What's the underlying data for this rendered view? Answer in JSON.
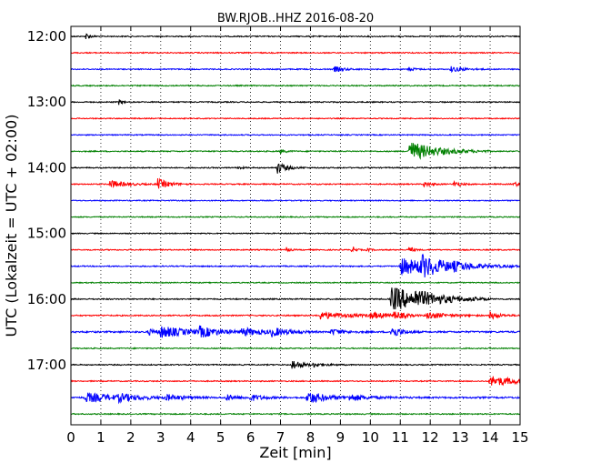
{
  "chart_data": {
    "type": "line",
    "title": "BW.RJOB..HHZ 2016-08-20",
    "xlabel": "Zeit  [min]",
    "ylabel": "UTC (Lokalzeit = UTC + 02:00)",
    "xlim": [
      0,
      15
    ],
    "x_ticks": [
      "0",
      "1",
      "2",
      "3",
      "4",
      "5",
      "6",
      "7",
      "8",
      "9",
      "10",
      "11",
      "12",
      "13",
      "14",
      "15"
    ],
    "y_ticks": [
      "12:00",
      "13:00",
      "14:00",
      "15:00",
      "16:00",
      "17:00"
    ],
    "grid": "vertical-dotted",
    "trace_interval_min": 15,
    "trace_colors": [
      "#000000",
      "#ff0000",
      "#0000ff",
      "#008000"
    ],
    "traces": [
      {
        "start": "12:00",
        "color": "#000000",
        "noise": 1.0,
        "events": [
          [
            0.5,
            4,
            0.12
          ]
        ]
      },
      {
        "start": "12:15",
        "color": "#ff0000",
        "noise": 1.0,
        "events": []
      },
      {
        "start": "12:30",
        "color": "#0000ff",
        "noise": 1.0,
        "events": [
          [
            8.8,
            3,
            0.3
          ],
          [
            12.7,
            3,
            0.4
          ],
          [
            11.3,
            2,
            0.2
          ]
        ]
      },
      {
        "start": "12:45",
        "color": "#008000",
        "noise": 1.0,
        "events": []
      },
      {
        "start": "13:00",
        "color": "#000000",
        "noise": 1.0,
        "events": [
          [
            1.6,
            3,
            0.1
          ]
        ]
      },
      {
        "start": "13:15",
        "color": "#ff0000",
        "noise": 0.9,
        "events": []
      },
      {
        "start": "13:30",
        "color": "#0000ff",
        "noise": 0.9,
        "events": []
      },
      {
        "start": "13:45",
        "color": "#008000",
        "noise": 1.0,
        "events": [
          [
            11.3,
            11,
            0.9
          ],
          [
            7.0,
            2,
            0.2
          ]
        ]
      },
      {
        "start": "14:00",
        "color": "#000000",
        "noise": 1.0,
        "events": [
          [
            6.9,
            6,
            0.3
          ],
          [
            5.6,
            2,
            0.1
          ]
        ]
      },
      {
        "start": "14:15",
        "color": "#ff0000",
        "noise": 1.0,
        "events": [
          [
            1.3,
            4,
            0.5
          ],
          [
            2.9,
            6,
            0.35
          ],
          [
            11.8,
            3,
            0.2
          ],
          [
            12.8,
            3,
            0.2
          ],
          [
            14.8,
            2,
            0.3
          ]
        ]
      },
      {
        "start": "14:30",
        "color": "#0000ff",
        "noise": 0.9,
        "events": []
      },
      {
        "start": "14:45",
        "color": "#008000",
        "noise": 0.9,
        "events": []
      },
      {
        "start": "15:00",
        "color": "#000000",
        "noise": 0.9,
        "events": []
      },
      {
        "start": "15:15",
        "color": "#ff0000",
        "noise": 1.0,
        "events": [
          [
            7.2,
            3,
            0.1
          ],
          [
            9.4,
            4,
            0.1
          ],
          [
            11.3,
            4,
            0.12
          ],
          [
            9.9,
            2,
            0.1
          ]
        ]
      },
      {
        "start": "15:30",
        "color": "#0000ff",
        "noise": 1.0,
        "events": [
          [
            11.0,
            9,
            1.6
          ],
          [
            11.7,
            8,
            0.6
          ],
          [
            12.8,
            2,
            0.4
          ]
        ]
      },
      {
        "start": "15:45",
        "color": "#008000",
        "noise": 0.9,
        "events": []
      },
      {
        "start": "16:00",
        "color": "#000000",
        "noise": 1.1,
        "events": [
          [
            10.7,
            14,
            1.1
          ],
          [
            11.5,
            4,
            0.8
          ]
        ]
      },
      {
        "start": "16:15",
        "color": "#ff0000",
        "noise": 1.1,
        "events": [
          [
            8.3,
            4,
            1.0
          ],
          [
            10.8,
            4,
            0.3
          ],
          [
            11.9,
            4,
            0.6
          ],
          [
            14.0,
            4,
            0.3
          ],
          [
            10.0,
            3,
            0.6
          ]
        ]
      },
      {
        "start": "16:30",
        "color": "#0000ff",
        "noise": 1.5,
        "events": [
          [
            3.0,
            6,
            0.9
          ],
          [
            4.3,
            5,
            0.6
          ],
          [
            5.7,
            4,
            0.8
          ],
          [
            6.7,
            4,
            0.5
          ],
          [
            10.7,
            7,
            0.3
          ],
          [
            8.7,
            3,
            0.4
          ],
          [
            2.6,
            3,
            0.3
          ]
        ]
      },
      {
        "start": "16:45",
        "color": "#008000",
        "noise": 1.0,
        "events": []
      },
      {
        "start": "17:00",
        "color": "#000000",
        "noise": 1.0,
        "events": [
          [
            7.4,
            6,
            0.3
          ],
          [
            8.1,
            2,
            0.4
          ]
        ]
      },
      {
        "start": "17:15",
        "color": "#ff0000",
        "noise": 1.0,
        "events": [
          [
            14.0,
            6,
            0.9
          ]
        ]
      },
      {
        "start": "17:30",
        "color": "#0000ff",
        "noise": 1.5,
        "events": [
          [
            0.5,
            5,
            1.1
          ],
          [
            1.6,
            3,
            0.5
          ],
          [
            3.2,
            3,
            0.5
          ],
          [
            7.9,
            7,
            0.6
          ],
          [
            9.3,
            3,
            0.7
          ],
          [
            5.2,
            3,
            0.4
          ],
          [
            6.0,
            3,
            0.4
          ]
        ]
      },
      {
        "start": "17:45",
        "color": "#008000",
        "noise": 1.0,
        "events": []
      }
    ]
  }
}
